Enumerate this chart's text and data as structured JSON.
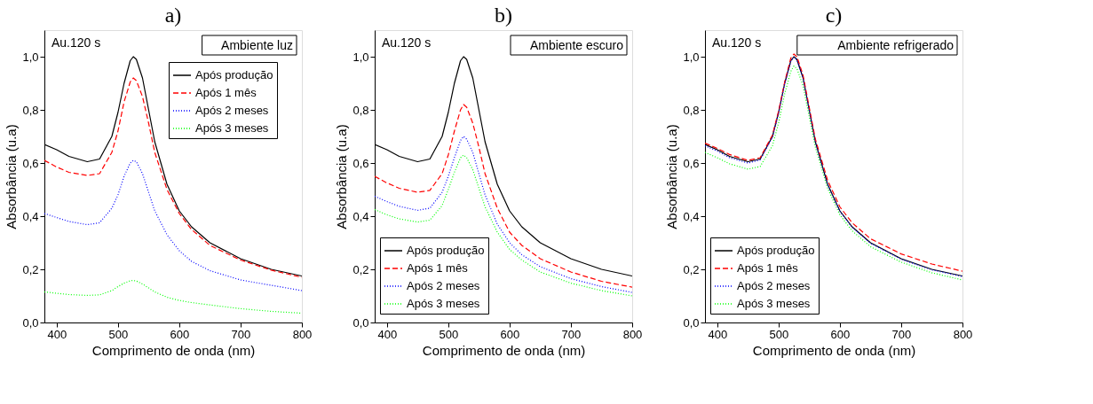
{
  "chart_data": [
    {
      "type": "line",
      "title": "a)",
      "xlabel": "Comprimento de onda (nm)",
      "ylabel": "Absorbância (u.a)",
      "annotations": [
        "Au.120 s",
        "Ambiente luz"
      ],
      "legend": "top right",
      "grid": false,
      "xlim": [
        380,
        800
      ],
      "xticks": [
        400,
        500,
        600,
        700,
        800
      ],
      "ylim": [
        0,
        1.1
      ],
      "yticks": [
        {
          "value": 0,
          "label": "0,0"
        },
        {
          "value": 0.2,
          "label": "0,2"
        },
        {
          "value": 0.4,
          "label": "0,4"
        },
        {
          "value": 0.6,
          "label": "0,6"
        },
        {
          "value": 0.8,
          "label": "0,8"
        },
        {
          "value": 1.0,
          "label": "1,0"
        }
      ],
      "x": [
        380,
        400,
        420,
        450,
        470,
        490,
        500,
        510,
        520,
        525,
        530,
        540,
        550,
        560,
        580,
        600,
        620,
        650,
        700,
        750,
        800
      ],
      "series": [
        {
          "name": "Após produção",
          "color": "#000000",
          "line_style": "solid",
          "values": [
            0.67,
            0.65,
            0.625,
            0.605,
            0.615,
            0.7,
            0.79,
            0.9,
            0.985,
            1.0,
            0.99,
            0.92,
            0.8,
            0.68,
            0.52,
            0.42,
            0.36,
            0.3,
            0.24,
            0.2,
            0.175
          ]
        },
        {
          "name": "Após 1 mês",
          "color": "#ff0000",
          "line_style": "dashed",
          "values": [
            0.61,
            0.585,
            0.565,
            0.553,
            0.56,
            0.64,
            0.72,
            0.83,
            0.905,
            0.92,
            0.91,
            0.85,
            0.75,
            0.64,
            0.5,
            0.41,
            0.35,
            0.29,
            0.235,
            0.197,
            0.17
          ]
        },
        {
          "name": "Após 2 meses",
          "color": "#0000ff",
          "line_style": "dotted",
          "values": [
            0.41,
            0.395,
            0.38,
            0.368,
            0.375,
            0.43,
            0.48,
            0.55,
            0.6,
            0.61,
            0.605,
            0.56,
            0.49,
            0.42,
            0.33,
            0.27,
            0.23,
            0.195,
            0.16,
            0.14,
            0.12
          ]
        },
        {
          "name": "Após 3 meses",
          "color": "#00ff00",
          "line_style": "dotted",
          "values": [
            0.115,
            0.11,
            0.105,
            0.102,
            0.104,
            0.12,
            0.135,
            0.148,
            0.157,
            0.158,
            0.156,
            0.145,
            0.13,
            0.115,
            0.095,
            0.083,
            0.075,
            0.066,
            0.052,
            0.042,
            0.035
          ]
        }
      ]
    },
    {
      "type": "line",
      "title": "b)",
      "xlabel": "Comprimento de onda (nm)",
      "ylabel": "Absorbância (u.a)",
      "annotations": [
        "Au.120 s",
        "Ambiente escuro"
      ],
      "legend": "bottom left",
      "grid": false,
      "xlim": [
        380,
        800
      ],
      "xticks": [
        400,
        500,
        600,
        700,
        800
      ],
      "ylim": [
        0,
        1.1
      ],
      "yticks": [
        {
          "value": 0,
          "label": "0,0"
        },
        {
          "value": 0.2,
          "label": "0,2"
        },
        {
          "value": 0.4,
          "label": "0,4"
        },
        {
          "value": 0.6,
          "label": "0,6"
        },
        {
          "value": 0.8,
          "label": "0,8"
        },
        {
          "value": 1.0,
          "label": "1,0"
        }
      ],
      "x": [
        380,
        400,
        420,
        450,
        470,
        490,
        500,
        510,
        520,
        525,
        530,
        540,
        550,
        560,
        580,
        600,
        620,
        650,
        700,
        750,
        800
      ],
      "series": [
        {
          "name": "Após produção",
          "color": "#000000",
          "line_style": "solid",
          "values": [
            0.67,
            0.65,
            0.625,
            0.605,
            0.615,
            0.7,
            0.79,
            0.9,
            0.985,
            1.0,
            0.99,
            0.92,
            0.8,
            0.68,
            0.52,
            0.42,
            0.36,
            0.3,
            0.24,
            0.2,
            0.175
          ]
        },
        {
          "name": "Após 1 mês",
          "color": "#ff0000",
          "line_style": "dashed",
          "values": [
            0.55,
            0.525,
            0.505,
            0.49,
            0.497,
            0.56,
            0.63,
            0.72,
            0.8,
            0.82,
            0.81,
            0.75,
            0.66,
            0.56,
            0.43,
            0.34,
            0.29,
            0.24,
            0.19,
            0.155,
            0.133
          ]
        },
        {
          "name": "Após 2 meses",
          "color": "#0000ff",
          "line_style": "dotted",
          "values": [
            0.475,
            0.455,
            0.437,
            0.422,
            0.43,
            0.49,
            0.55,
            0.62,
            0.685,
            0.7,
            0.69,
            0.64,
            0.56,
            0.48,
            0.37,
            0.3,
            0.255,
            0.21,
            0.165,
            0.135,
            0.113
          ]
        },
        {
          "name": "Após 3 meses",
          "color": "#00ff00",
          "line_style": "dotted",
          "values": [
            0.425,
            0.405,
            0.39,
            0.378,
            0.385,
            0.44,
            0.5,
            0.565,
            0.62,
            0.63,
            0.62,
            0.575,
            0.505,
            0.435,
            0.34,
            0.275,
            0.235,
            0.19,
            0.148,
            0.12,
            0.1
          ]
        }
      ]
    },
    {
      "type": "line",
      "title": "c)",
      "xlabel": "Comprimento de onda (nm)",
      "ylabel": "Absorbância (u.a)",
      "annotations": [
        "Au.120 s",
        "Ambiente  refrigerado"
      ],
      "legend": "bottom left",
      "grid": false,
      "xlim": [
        380,
        800
      ],
      "xticks": [
        400,
        500,
        600,
        700,
        800
      ],
      "ylim": [
        0,
        1.1
      ],
      "yticks": [
        {
          "value": 0,
          "label": "0,0"
        },
        {
          "value": 0.2,
          "label": "0,2"
        },
        {
          "value": 0.4,
          "label": "0,4"
        },
        {
          "value": 0.6,
          "label": "0,6"
        },
        {
          "value": 0.8,
          "label": "0,8"
        },
        {
          "value": 1.0,
          "label": "1,0"
        }
      ],
      "x": [
        380,
        400,
        420,
        450,
        470,
        490,
        500,
        510,
        520,
        525,
        530,
        540,
        550,
        560,
        580,
        600,
        620,
        650,
        700,
        750,
        800
      ],
      "series": [
        {
          "name": "Após produção",
          "color": "#000000",
          "line_style": "solid",
          "values": [
            0.67,
            0.65,
            0.625,
            0.605,
            0.615,
            0.7,
            0.79,
            0.9,
            0.985,
            1.0,
            0.99,
            0.92,
            0.8,
            0.68,
            0.52,
            0.42,
            0.36,
            0.3,
            0.24,
            0.2,
            0.175
          ]
        },
        {
          "name": "Após 1 mês",
          "color": "#ff0000",
          "line_style": "dashed",
          "values": [
            0.675,
            0.655,
            0.632,
            0.61,
            0.62,
            0.705,
            0.795,
            0.905,
            0.995,
            1.01,
            1.0,
            0.93,
            0.81,
            0.69,
            0.535,
            0.435,
            0.375,
            0.315,
            0.258,
            0.22,
            0.193
          ]
        },
        {
          "name": "Após 2 meses",
          "color": "#0000ff",
          "line_style": "dotted",
          "values": [
            0.665,
            0.645,
            0.62,
            0.6,
            0.612,
            0.697,
            0.787,
            0.897,
            0.983,
            0.997,
            0.988,
            0.918,
            0.798,
            0.678,
            0.518,
            0.418,
            0.358,
            0.298,
            0.238,
            0.198,
            0.173
          ]
        },
        {
          "name": "Após 3 meses",
          "color": "#00ff00",
          "line_style": "dotted",
          "values": [
            0.64,
            0.62,
            0.597,
            0.577,
            0.587,
            0.665,
            0.75,
            0.86,
            0.945,
            0.965,
            0.955,
            0.89,
            0.775,
            0.66,
            0.505,
            0.405,
            0.345,
            0.285,
            0.227,
            0.187,
            0.16
          ]
        }
      ]
    }
  ]
}
